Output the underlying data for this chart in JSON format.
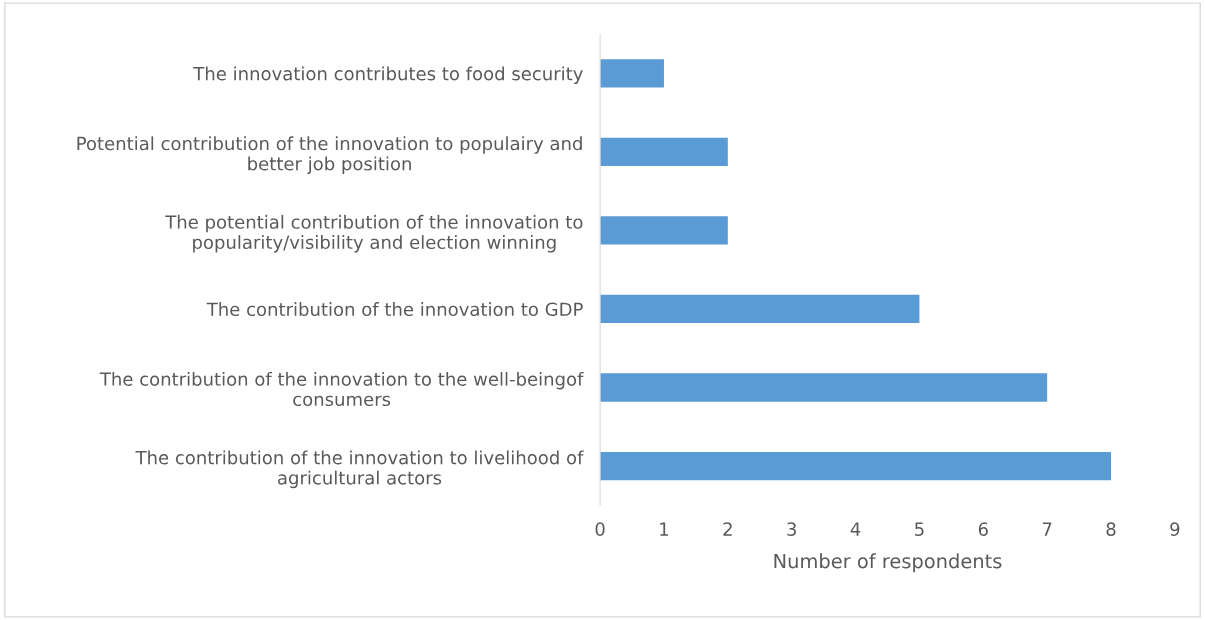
{
  "chart_data": {
    "type": "bar",
    "orientation": "horizontal",
    "xlabel": "Number of respondents",
    "categories": [
      "The innovation contributes to food security",
      "Potential contribution of the innovation to populairy and\nbetter job position",
      "The potential contribution of the innovation to\npopularity/visibility and election winning",
      "The contribution of the innovation to GDP",
      "The contribution of the innovation to the well-beingof\nconsumers",
      "The contribution of the innovation to livelihood of\nagricultural actors"
    ],
    "values": [
      1,
      2,
      2,
      5,
      7,
      8
    ],
    "color": "#5b9bd5",
    "xlim": [
      0,
      9
    ],
    "xticks": [
      0,
      1,
      2,
      3,
      4,
      5,
      6,
      7,
      8,
      9
    ],
    "grid": false
  }
}
